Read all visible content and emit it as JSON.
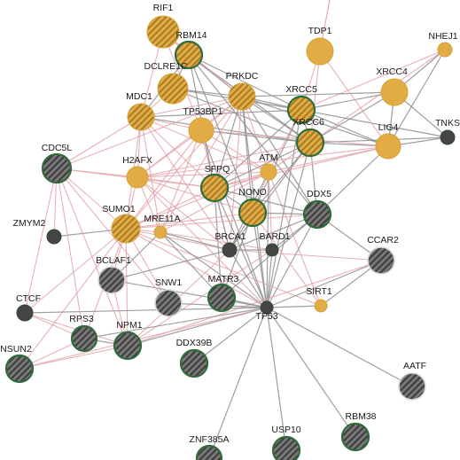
{
  "colors": {
    "gold": "#e2ac44",
    "gold_stroke": "#d7a03b",
    "hatch_dark": "#a87a24",
    "gray_node": "#4a4a4a",
    "gray_hatch": "#7a7a7a",
    "dark_node": "#454545",
    "green_ring": "#2f6b3c",
    "edge_gray": "#8e8e8e",
    "edge_pink": "#e3a3a8"
  },
  "nodes": [
    {
      "id": "RIF1",
      "label": "RIF1",
      "style": "gold-hatch"
    },
    {
      "id": "RBM14",
      "label": "RBM14",
      "style": "gold-hatch-ring"
    },
    {
      "id": "TDP1",
      "label": "TDP1",
      "style": "gold"
    },
    {
      "id": "NHEJ1",
      "label": "NHEJ1",
      "style": "gold-small"
    },
    {
      "id": "DCLRE1C",
      "label": "DCLRE1C",
      "style": "gold-hatch"
    },
    {
      "id": "PRKDC",
      "label": "PRKDC",
      "style": "gold-hatch"
    },
    {
      "id": "XRCC5",
      "label": "XRCC5",
      "style": "gold-hatch-ring"
    },
    {
      "id": "XRCC4",
      "label": "XRCC4",
      "style": "gold"
    },
    {
      "id": "MDC1",
      "label": "MDC1",
      "style": "gold-hatch"
    },
    {
      "id": "TP53BP1",
      "label": "TP53BP1",
      "style": "gold"
    },
    {
      "id": "XRCC6",
      "label": "XRCC6",
      "style": "gold-hatch-ring"
    },
    {
      "id": "TNKS",
      "label": "TNKS",
      "style": "dark-small"
    },
    {
      "id": "LIG4",
      "label": "LIG4",
      "style": "gold"
    },
    {
      "id": "CDC5L",
      "label": "CDC5L",
      "style": "gray-hatch-ring"
    },
    {
      "id": "H2AFX",
      "label": "H2AFX",
      "style": "gold"
    },
    {
      "id": "ATM",
      "label": "ATM",
      "style": "gold-small"
    },
    {
      "id": "SFPQ",
      "label": "SFPQ",
      "style": "gold-hatch-ring"
    },
    {
      "id": "NONO",
      "label": "NONO",
      "style": "gold-hatch-ring"
    },
    {
      "id": "DDX5",
      "label": "DDX5",
      "style": "gray-hatch-ring"
    },
    {
      "id": "ZMYM2",
      "label": "ZMYM2",
      "style": "dark-small"
    },
    {
      "id": "SUMO1",
      "label": "SUMO1",
      "style": "gold-hatch"
    },
    {
      "id": "MRE11A",
      "label": "MRE11A",
      "style": "gold-small"
    },
    {
      "id": "BRCA1",
      "label": "BRCA1",
      "style": "dark-small"
    },
    {
      "id": "BARD1",
      "label": "BARD1",
      "style": "dark-small"
    },
    {
      "id": "CCAR2",
      "label": "CCAR2",
      "style": "gray-hatch-plain"
    },
    {
      "id": "BCLAF1",
      "label": "BCLAF1",
      "style": "gray-hatch-plain"
    },
    {
      "id": "SNW1",
      "label": "SNW1",
      "style": "gray-hatch-plain"
    },
    {
      "id": "MATR3",
      "label": "MATR3",
      "style": "gray-hatch-ring"
    },
    {
      "id": "TP53",
      "label": "TP53",
      "style": "dark-small"
    },
    {
      "id": "SIRT1",
      "label": "SIRT1",
      "style": "gold-small"
    },
    {
      "id": "CTCF",
      "label": "CTCF",
      "style": "dark-small"
    },
    {
      "id": "RPS3",
      "label": "RPS3",
      "style": "gray-hatch-ring"
    },
    {
      "id": "NPM1",
      "label": "NPM1",
      "style": "gray-hatch-ring"
    },
    {
      "id": "NSUN2",
      "label": "NSUN2",
      "style": "gray-hatch-ring"
    },
    {
      "id": "DDX39B",
      "label": "DDX39B",
      "style": "gray-hatch-ring"
    },
    {
      "id": "AATF",
      "label": "AATF",
      "style": "gray-hatch-plain"
    },
    {
      "id": "RBM38",
      "label": "RBM38",
      "style": "gray-hatch-ring"
    },
    {
      "id": "ZNF385A",
      "label": "ZNF385A",
      "style": "gray-hatch-ring"
    },
    {
      "id": "USP10",
      "label": "USP10",
      "style": "gray-hatch-ring"
    }
  ],
  "edges": [
    {
      "s": "XRCC6",
      "t": "XRCC5",
      "c": "gray"
    },
    {
      "s": "XRCC6",
      "t": "PRKDC",
      "c": "gray"
    },
    {
      "s": "XRCC6",
      "t": "XRCC4",
      "c": "gray"
    },
    {
      "s": "XRCC6",
      "t": "LIG4",
      "c": "gray"
    },
    {
      "s": "XRCC6",
      "t": "TNKS",
      "c": "gray"
    },
    {
      "s": "XRCC6",
      "t": "SFPQ",
      "c": "gray"
    },
    {
      "s": "XRCC6",
      "t": "NONO",
      "c": "gray"
    },
    {
      "s": "XRCC6",
      "t": "TP53",
      "c": "gray"
    },
    {
      "s": "XRCC6",
      "t": "DDX5",
      "c": "gray"
    },
    {
      "s": "XRCC6",
      "t": "MDC1",
      "c": "gray"
    },
    {
      "s": "XRCC6",
      "t": "RBM14",
      "c": "gray"
    },
    {
      "s": "XRCC6",
      "t": "H2AFX",
      "c": "pink"
    },
    {
      "s": "XRCC6",
      "t": "DCLRE1C",
      "c": "gray"
    },
    {
      "s": "XRCC6",
      "t": "ATM",
      "c": "pink"
    },
    {
      "s": "XRCC6",
      "t": "BRCA1",
      "c": "gray"
    },
    {
      "s": "XRCC6",
      "t": "NHEJ1",
      "c": "pink"
    },
    {
      "s": "XRCC6",
      "t": "TP53BP1",
      "c": "gray"
    },
    {
      "s": "XRCC5",
      "t": "PRKDC",
      "c": "gray"
    },
    {
      "s": "XRCC5",
      "t": "XRCC4",
      "c": "gray"
    },
    {
      "s": "XRCC5",
      "t": "LIG4",
      "c": "gray"
    },
    {
      "s": "XRCC5",
      "t": "RBM14",
      "c": "gray"
    },
    {
      "s": "XRCC5",
      "t": "MDC1",
      "c": "gray"
    },
    {
      "s": "XRCC5",
      "t": "SFPQ",
      "c": "gray"
    },
    {
      "s": "XRCC5",
      "t": "NONO",
      "c": "gray"
    },
    {
      "s": "XRCC5",
      "t": "TNKS",
      "c": "gray"
    },
    {
      "s": "XRCC5",
      "t": "TP53",
      "c": "gray"
    },
    {
      "s": "XRCC5",
      "t": "DCLRE1C",
      "c": "gray"
    },
    {
      "s": "XRCC5",
      "t": "NHEJ1",
      "c": "pink"
    },
    {
      "s": "XRCC5",
      "t": "TDP1",
      "c": "pink"
    },
    {
      "s": "XRCC5",
      "t": "ATM",
      "c": "pink"
    },
    {
      "s": "PRKDC",
      "t": "RBM14",
      "c": "gray"
    },
    {
      "s": "PRKDC",
      "t": "DCLRE1C",
      "c": "gray"
    },
    {
      "s": "PRKDC",
      "t": "MDC1",
      "c": "pink"
    },
    {
      "s": "PRKDC",
      "t": "TP53BP1",
      "c": "pink"
    },
    {
      "s": "PRKDC",
      "t": "H2AFX",
      "c": "pink"
    },
    {
      "s": "PRKDC",
      "t": "ATM",
      "c": "pink"
    },
    {
      "s": "PRKDC",
      "t": "SFPQ",
      "c": "gray"
    },
    {
      "s": "PRKDC",
      "t": "NONO",
      "c": "gray"
    },
    {
      "s": "PRKDC",
      "t": "XRCC4",
      "c": "gray"
    },
    {
      "s": "PRKDC",
      "t": "LIG4",
      "c": "gray"
    },
    {
      "s": "PRKDC",
      "t": "TP53",
      "c": "gray"
    },
    {
      "s": "PRKDC",
      "t": "BRCA1",
      "c": "pink"
    },
    {
      "s": "PRKDC",
      "t": "SUMO1",
      "c": "pink"
    },
    {
      "s": "PRKDC",
      "t": "MRE11A",
      "c": "pink"
    },
    {
      "s": "PRKDC",
      "t": "DDX5",
      "c": "gray"
    },
    {
      "s": "PRKDC",
      "t": "RIF1",
      "c": "pink"
    },
    {
      "s": "PRKDC",
      "t": "CDC5L",
      "c": "pink"
    },
    {
      "s": "XRCC4",
      "t": "LIG4",
      "c": "gray"
    },
    {
      "s": "XRCC4",
      "t": "NHEJ1",
      "c": "gray"
    },
    {
      "s": "XRCC4",
      "t": "TNKS",
      "c": "gray"
    },
    {
      "s": "LIG4",
      "t": "NHEJ1",
      "c": "gray"
    },
    {
      "s": "LIG4",
      "t": "TNKS",
      "c": "gray"
    },
    {
      "s": "LIG4",
      "t": "TP53BP1",
      "c": "pink"
    },
    {
      "s": "LIG4",
      "t": "ATM",
      "c": "pink"
    },
    {
      "s": "LIG4",
      "t": "SFPQ",
      "c": "pink"
    },
    {
      "s": "LIG4",
      "t": "H2AFX",
      "c": "pink"
    },
    {
      "s": "LIG4",
      "t": "DDX5",
      "c": "gray"
    },
    {
      "s": "MDC1",
      "t": "H2AFX",
      "c": "pink"
    },
    {
      "s": "MDC1",
      "t": "TP53BP1",
      "c": "pink"
    },
    {
      "s": "MDC1",
      "t": "ATM",
      "c": "pink"
    },
    {
      "s": "MDC1",
      "t": "SUMO1",
      "c": "pink"
    },
    {
      "s": "MDC1",
      "t": "CDC5L",
      "c": "pink"
    },
    {
      "s": "MDC1",
      "t": "RIF1",
      "c": "pink"
    },
    {
      "s": "MDC1",
      "t": "MRE11A",
      "c": "pink"
    },
    {
      "s": "MDC1",
      "t": "BRCA1",
      "c": "pink"
    },
    {
      "s": "MDC1",
      "t": "SFPQ",
      "c": "pink"
    },
    {
      "s": "TP53BP1",
      "t": "H2AFX",
      "c": "pink"
    },
    {
      "s": "TP53BP1",
      "t": "ATM",
      "c": "pink"
    },
    {
      "s": "TP53BP1",
      "t": "RIF1",
      "c": "pink"
    },
    {
      "s": "TP53BP1",
      "t": "TP53",
      "c": "gray"
    },
    {
      "s": "TP53BP1",
      "t": "BRCA1",
      "c": "pink"
    },
    {
      "s": "TP53BP1",
      "t": "SUMO1",
      "c": "pink"
    },
    {
      "s": "TP53BP1",
      "t": "MRE11A",
      "c": "pink"
    },
    {
      "s": "TP53BP1",
      "t": "SFPQ",
      "c": "pink"
    },
    {
      "s": "H2AFX",
      "t": "ATM",
      "c": "pink"
    },
    {
      "s": "H2AFX",
      "t": "SUMO1",
      "c": "pink"
    },
    {
      "s": "H2AFX",
      "t": "MRE11A",
      "c": "pink"
    },
    {
      "s": "H2AFX",
      "t": "BRCA1",
      "c": "pink"
    },
    {
      "s": "H2AFX",
      "t": "SFPQ",
      "c": "pink"
    },
    {
      "s": "H2AFX",
      "t": "CDC5L",
      "c": "pink"
    },
    {
      "s": "H2AFX",
      "t": "TP53",
      "c": "pink"
    },
    {
      "s": "H2AFX",
      "t": "NONO",
      "c": "pink"
    },
    {
      "s": "ATM",
      "t": "BRCA1",
      "c": "gray"
    },
    {
      "s": "ATM",
      "t": "TP53",
      "c": "gray"
    },
    {
      "s": "ATM",
      "t": "MRE11A",
      "c": "pink"
    },
    {
      "s": "ATM",
      "t": "SUMO1",
      "c": "pink"
    },
    {
      "s": "ATM",
      "t": "NONO",
      "c": "pink"
    },
    {
      "s": "ATM",
      "t": "BARD1",
      "c": "pink"
    },
    {
      "s": "ATM",
      "t": "SIRT1",
      "c": "pink"
    },
    {
      "s": "ATM",
      "t": "SFPQ",
      "c": "pink"
    },
    {
      "s": "SFPQ",
      "t": "NONO",
      "c": "gray"
    },
    {
      "s": "SFPQ",
      "t": "RBM14",
      "c": "gray"
    },
    {
      "s": "SFPQ",
      "t": "SUMO1",
      "c": "pink"
    },
    {
      "s": "SFPQ",
      "t": "DDX5",
      "c": "gray"
    },
    {
      "s": "SFPQ",
      "t": "MATR3",
      "c": "gray"
    },
    {
      "s": "SFPQ",
      "t": "TP53",
      "c": "gray"
    },
    {
      "s": "SFPQ",
      "t": "BRCA1",
      "c": "gray"
    },
    {
      "s": "SFPQ",
      "t": "CDC5L",
      "c": "pink"
    },
    {
      "s": "NONO",
      "t": "RBM14",
      "c": "gray"
    },
    {
      "s": "NONO",
      "t": "DDX5",
      "c": "gray"
    },
    {
      "s": "NONO",
      "t": "MATR3",
      "c": "gray"
    },
    {
      "s": "NONO",
      "t": "SUMO1",
      "c": "pink"
    },
    {
      "s": "NONO",
      "t": "TP53",
      "c": "gray"
    },
    {
      "s": "NONO",
      "t": "BRCA1",
      "c": "gray"
    },
    {
      "s": "SUMO1",
      "t": "MRE11A",
      "c": "pink"
    },
    {
      "s": "SUMO1",
      "t": "BRCA1",
      "c": "pink"
    },
    {
      "s": "SUMO1",
      "t": "CDC5L",
      "c": "pink"
    },
    {
      "s": "SUMO1",
      "t": "ZMYM2",
      "c": "gray"
    },
    {
      "s": "SUMO1",
      "t": "BCLAF1",
      "c": "pink"
    },
    {
      "s": "SUMO1",
      "t": "NPM1",
      "c": "pink"
    },
    {
      "s": "SUMO1",
      "t": "TP53",
      "c": "pink"
    },
    {
      "s": "SUMO1",
      "t": "CTCF",
      "c": "pink"
    },
    {
      "s": "SUMO1",
      "t": "RPS3",
      "c": "pink"
    },
    {
      "s": "SUMO1",
      "t": "SIRT1",
      "c": "pink"
    },
    {
      "s": "SUMO1",
      "t": "SNW1",
      "c": "pink"
    },
    {
      "s": "SUMO1",
      "t": "NSUN2",
      "c": "pink"
    },
    {
      "s": "SUMO1",
      "t": "DDX5",
      "c": "pink"
    },
    {
      "s": "MRE11A",
      "t": "BRCA1",
      "c": "gray"
    },
    {
      "s": "MRE11A",
      "t": "TP53",
      "c": "gray"
    },
    {
      "s": "MRE11A",
      "t": "BARD1",
      "c": "pink"
    },
    {
      "s": "BRCA1",
      "t": "BARD1",
      "c": "gray"
    },
    {
      "s": "BRCA1",
      "t": "TP53",
      "c": "gray"
    },
    {
      "s": "BRCA1",
      "t": "CCAR2",
      "c": "pink"
    },
    {
      "s": "BRCA1",
      "t": "NPM1",
      "c": "pink"
    },
    {
      "s": "BRCA1",
      "t": "BCLAF1",
      "c": "gray"
    },
    {
      "s": "BRCA1",
      "t": "DDX5",
      "c": "gray"
    },
    {
      "s": "BARD1",
      "t": "TP53",
      "c": "gray"
    },
    {
      "s": "BARD1",
      "t": "NPM1",
      "c": "pink"
    },
    {
      "s": "BARD1",
      "t": "DDX5",
      "c": "gray"
    },
    {
      "s": "DDX5",
      "t": "TP53",
      "c": "gray"
    },
    {
      "s": "DDX5",
      "t": "CCAR2",
      "c": "gray"
    },
    {
      "s": "DDX5",
      "t": "MATR3",
      "c": "gray"
    },
    {
      "s": "DDX5",
      "t": "RBM14",
      "c": "gray"
    },
    {
      "s": "CCAR2",
      "t": "TP53",
      "c": "gray"
    },
    {
      "s": "CCAR2",
      "t": "SIRT1",
      "c": "gray"
    },
    {
      "s": "CCAR2",
      "t": "NPM1",
      "c": "pink"
    },
    {
      "s": "TP53",
      "t": "SIRT1",
      "c": "gray"
    },
    {
      "s": "TP53",
      "t": "AATF",
      "c": "gray"
    },
    {
      "s": "TP53",
      "t": "RBM38",
      "c": "gray"
    },
    {
      "s": "TP53",
      "t": "USP10",
      "c": "gray"
    },
    {
      "s": "TP53",
      "t": "ZNF385A",
      "c": "gray"
    },
    {
      "s": "TP53",
      "t": "NPM1",
      "c": "gray"
    },
    {
      "s": "TP53",
      "t": "RPS3",
      "c": "gray"
    },
    {
      "s": "TP53",
      "t": "CTCF",
      "c": "gray"
    },
    {
      "s": "TP53",
      "t": "MATR3",
      "c": "gray"
    },
    {
      "s": "TP53",
      "t": "DDX39B",
      "c": "gray"
    },
    {
      "s": "TP53",
      "t": "SNW1",
      "c": "gray"
    },
    {
      "s": "TP53",
      "t": "NSUN2",
      "c": "pink"
    },
    {
      "s": "TP53",
      "t": "BCLAF1",
      "c": "gray"
    },
    {
      "s": "NPM1",
      "t": "RPS3",
      "c": "gray"
    },
    {
      "s": "NPM1",
      "t": "NSUN2",
      "c": "pink"
    },
    {
      "s": "NPM1",
      "t": "CDC5L",
      "c": "pink"
    },
    {
      "s": "NPM1",
      "t": "BCLAF1",
      "c": "pink"
    },
    {
      "s": "NPM1",
      "t": "CTCF",
      "c": "pink"
    },
    {
      "s": "CDC5L",
      "t": "ZMYM2",
      "c": "pink"
    },
    {
      "s": "CDC5L",
      "t": "SNW1",
      "c": "pink"
    },
    {
      "s": "CDC5L",
      "t": "RPS3",
      "c": "pink"
    },
    {
      "s": "CDC5L",
      "t": "CTCF",
      "c": "pink"
    },
    {
      "s": "RPS3",
      "t": "CTCF",
      "c": "pink"
    },
    {
      "s": "RPS3",
      "t": "NSUN2",
      "c": "pink"
    },
    {
      "s": "BCLAF1",
      "t": "MRE11A",
      "c": "gray"
    },
    {
      "s": "DCLRE1C",
      "t": "RBM14",
      "c": "gray"
    },
    {
      "s": "DCLRE1C",
      "t": "MDC1",
      "c": "pink"
    },
    {
      "s": "RBM14",
      "t": "RIF1",
      "c": "pink"
    },
    {
      "s": "RBM14",
      "t": "MDC1",
      "c": "gray"
    },
    {
      "s": "SIRT1",
      "t": "NONO",
      "c": "pink"
    },
    {
      "s": "MATR3",
      "t": "MRE11A",
      "c": "gray"
    },
    {
      "s": "TDP1",
      "t": "XRCC6",
      "c": "pink"
    },
    {
      "s": "TDP1",
      "t": "LIG4",
      "c": "pink"
    }
  ]
}
